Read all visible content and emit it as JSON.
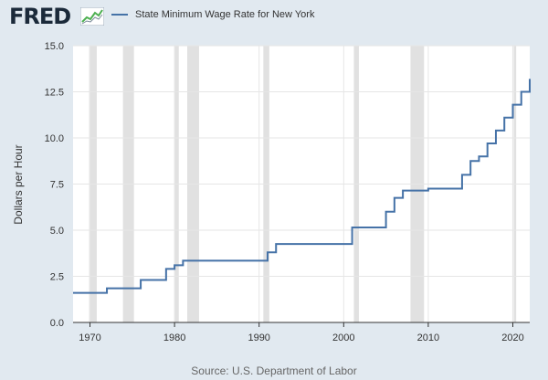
{
  "header": {
    "logo_text": "FRED",
    "logo_icon": "fred-chart-icon",
    "legend_label": "State Minimum Wage Rate for New York",
    "series_color": "#4572a7"
  },
  "source": "Source: U.S. Department of Labor",
  "chart_data": {
    "type": "line",
    "title": "",
    "ylabel": "Dollars per Hour",
    "xlabel": "",
    "xlim": [
      1968,
      2022
    ],
    "ylim": [
      0,
      15
    ],
    "x_ticks": [
      1970,
      1980,
      1990,
      2000,
      2010,
      2020
    ],
    "y_ticks": [
      0.0,
      2.5,
      5.0,
      7.5,
      10.0,
      12.5,
      15.0
    ],
    "y_tick_labels": [
      "0.0",
      "2.5",
      "5.0",
      "7.5",
      "10.0",
      "12.5",
      "15.0"
    ],
    "grid": true,
    "legend_position": "top",
    "line_shape": "step",
    "recessions": [
      [
        1969.9,
        1970.8
      ],
      [
        1973.9,
        1975.2
      ],
      [
        1980.0,
        1980.5
      ],
      [
        1981.5,
        1982.9
      ],
      [
        1990.5,
        1991.2
      ],
      [
        2001.2,
        2001.8
      ],
      [
        2007.9,
        2009.5
      ],
      [
        2020.1,
        2020.4
      ]
    ],
    "series": [
      {
        "name": "State Minimum Wage Rate for New York",
        "points": [
          [
            1968,
            1.6
          ],
          [
            1972,
            1.85
          ],
          [
            1976,
            2.3
          ],
          [
            1979,
            2.9
          ],
          [
            1980,
            3.1
          ],
          [
            1981,
            3.35
          ],
          [
            1991,
            3.8
          ],
          [
            1992,
            4.25
          ],
          [
            2001,
            5.15
          ],
          [
            2005,
            6.0
          ],
          [
            2006,
            6.75
          ],
          [
            2007,
            7.15
          ],
          [
            2010,
            7.25
          ],
          [
            2014,
            8.0
          ],
          [
            2015,
            8.75
          ],
          [
            2016,
            9.0
          ],
          [
            2017,
            9.7
          ],
          [
            2018,
            10.4
          ],
          [
            2019,
            11.1
          ],
          [
            2020,
            11.8
          ],
          [
            2021,
            12.5
          ],
          [
            2022,
            13.2
          ]
        ]
      }
    ]
  }
}
